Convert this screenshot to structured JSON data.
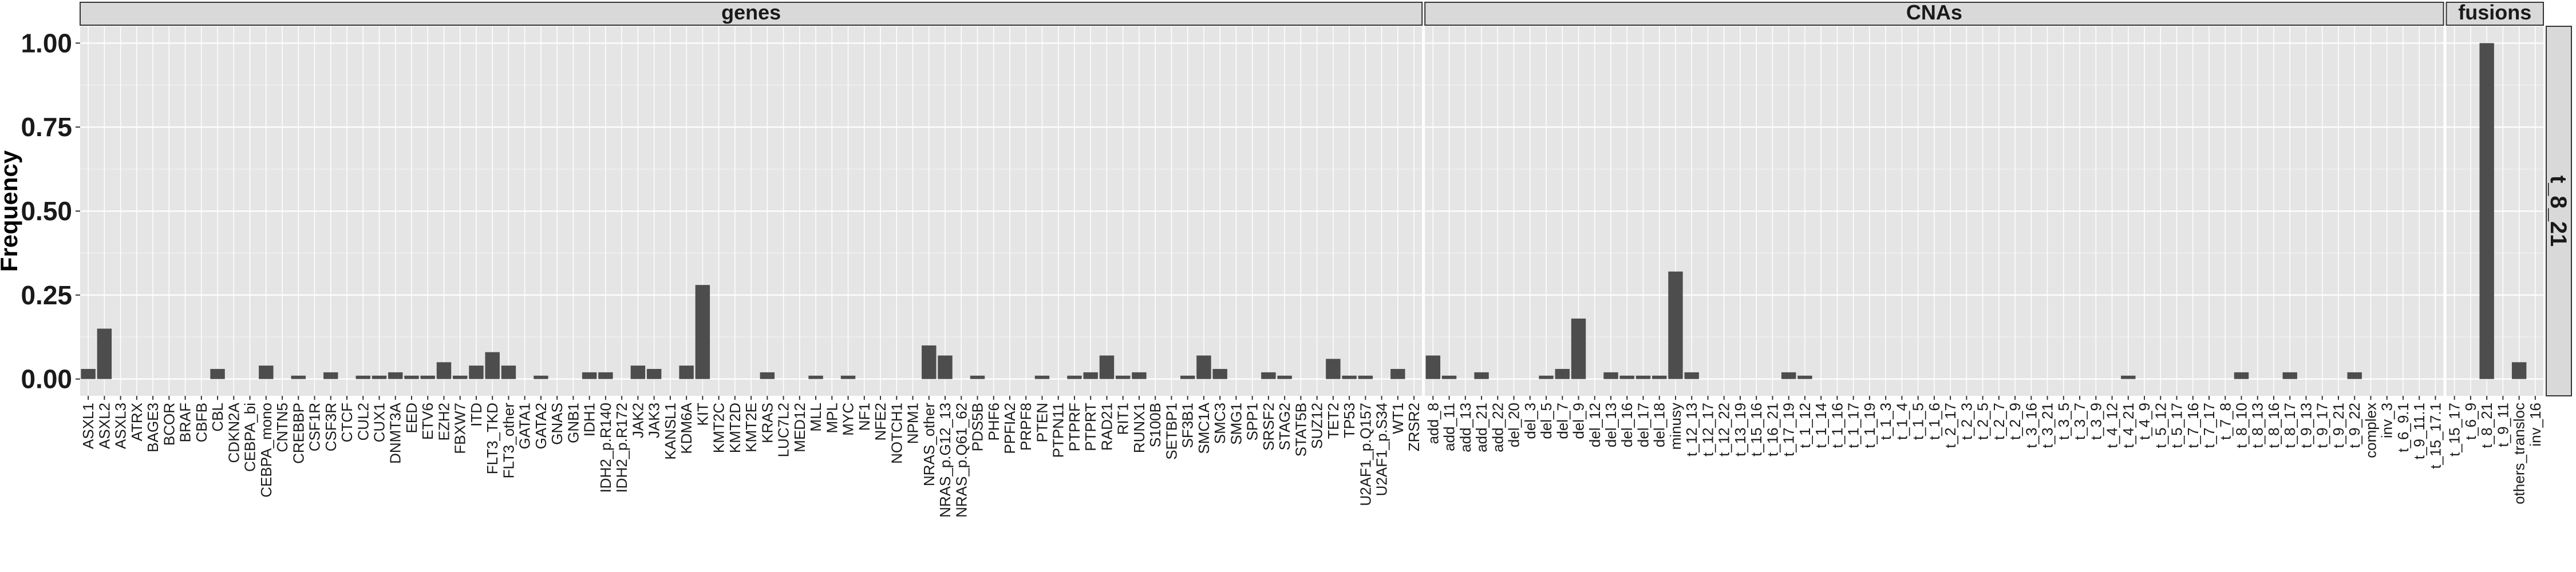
{
  "chart_data": {
    "type": "bar",
    "ylabel": "Frequency",
    "xlabel": "",
    "ylim": [
      0,
      1.0
    ],
    "y_ticks": [
      "0.00",
      "0.25",
      "0.50",
      "0.75",
      "1.00"
    ],
    "row_strip": "t_8_21",
    "bar_color": "#4d4d4d",
    "panel_background": "#e5e5e5",
    "strip_background": "#d9d9d9",
    "grid": true,
    "panels": [
      {
        "title": "genes",
        "categories": [
          "ASXL1",
          "ASXL2",
          "ASXL3",
          "ATRX",
          "BAGE3",
          "BCOR",
          "BRAF",
          "CBFB",
          "CBL",
          "CDKN2A",
          "CEBPA_bi",
          "CEBPA_mono",
          "CNTN5",
          "CREBBP",
          "CSF1R",
          "CSF3R",
          "CTCF",
          "CUL2",
          "CUX1",
          "DNMT3A",
          "EED",
          "ETV6",
          "EZH2",
          "FBXW7",
          "ITD",
          "FLT3_TKD",
          "FLT3_other",
          "GATA1",
          "GATA2",
          "GNAS",
          "GNB1",
          "IDH1",
          "IDH2_p.R140",
          "IDH2_p.R172",
          "JAK2",
          "JAK3",
          "KANSL1",
          "KDM6A",
          "KIT",
          "KMT2C",
          "KMT2D",
          "KMT2E",
          "KRAS",
          "LUC7L2",
          "MED12",
          "MLL",
          "MPL",
          "MYC",
          "NF1",
          "NFE2",
          "NOTCH1",
          "NPM1",
          "NRAS_other",
          "NRAS_p.G12_13",
          "NRAS_p.Q61_62",
          "PDS5B",
          "PHF6",
          "PPFIA2",
          "PRPF8",
          "PTEN",
          "PTPN11",
          "PTPRF",
          "PTPRT",
          "RAD21",
          "RIT1",
          "RUNX1",
          "S100B",
          "SETBP1",
          "SF3B1",
          "SMC1A",
          "SMC3",
          "SMG1",
          "SPP1",
          "SRSF2",
          "STAG2",
          "STAT5B",
          "SUZ12",
          "TET2",
          "TP53",
          "U2AF1_p.Q157",
          "U2AF1_p.S34",
          "WT1",
          "ZRSR2"
        ],
        "values": [
          0.03,
          0.15,
          0,
          0,
          0,
          0,
          0,
          0,
          0.03,
          0,
          0,
          0.04,
          0,
          0.01,
          0,
          0.02,
          0,
          0.01,
          0.01,
          0.02,
          0.01,
          0.01,
          0.05,
          0.01,
          0.04,
          0.08,
          0.04,
          0,
          0.01,
          0,
          0,
          0.02,
          0.02,
          0,
          0.04,
          0.03,
          0,
          0.04,
          0.28,
          0,
          0,
          0,
          0.02,
          0,
          0,
          0.01,
          0,
          0.01,
          0,
          0,
          0,
          0,
          0.1,
          0.07,
          0,
          0.01,
          0,
          0,
          0,
          0.01,
          0,
          0.01,
          0.02,
          0.07,
          0.01,
          0.02,
          0,
          0,
          0.01,
          0.07,
          0.03,
          0,
          0,
          0.02,
          0.01,
          0,
          0,
          0.06,
          0.01,
          0.01,
          0,
          0.03,
          0
        ]
      },
      {
        "title": "CNAs",
        "categories": [
          "add_8",
          "add_11",
          "add_13",
          "add_21",
          "add_22",
          "del_20",
          "del_3",
          "del_5",
          "del_7",
          "del_9",
          "del_12",
          "del_13",
          "del_16",
          "del_17",
          "del_18",
          "minusy",
          "t_12_13",
          "t_12_17",
          "t_12_22",
          "t_13_19",
          "t_15_16",
          "t_16_21",
          "t_17_19",
          "t_1_12",
          "t_1_14",
          "t_1_16",
          "t_1_17",
          "t_1_19",
          "t_1_3",
          "t_1_4",
          "t_1_5",
          "t_1_6",
          "t_2_17",
          "t_2_3",
          "t_2_5",
          "t_2_7",
          "t_2_9",
          "t_3_16",
          "t_3_21",
          "t_3_5",
          "t_3_7",
          "t_3_9",
          "t_4_12",
          "t_4_21",
          "t_4_9",
          "t_5_12",
          "t_5_17",
          "t_7_16",
          "t_7_17",
          "t_7_8",
          "t_8_10",
          "t_8_13",
          "t_8_16",
          "t_8_17",
          "t_9_13",
          "t_9_17",
          "t_9_21",
          "t_9_22",
          "complex",
          "inv_3",
          "t_6_9.1",
          "t_9_11.1",
          "t_15_17.1"
        ],
        "values": [
          0.07,
          0.01,
          0,
          0.02,
          0,
          0,
          0,
          0.01,
          0.03,
          0.18,
          0,
          0.02,
          0.01,
          0.01,
          0.01,
          0.32,
          0.02,
          0,
          0,
          0,
          0,
          0,
          0.02,
          0.01,
          0,
          0,
          0,
          0,
          0,
          0,
          0,
          0,
          0,
          0,
          0,
          0,
          0,
          0,
          0,
          0,
          0,
          0,
          0,
          0.01,
          0,
          0,
          0,
          0,
          0,
          0,
          0.02,
          0,
          0,
          0.02,
          0,
          0,
          0,
          0.02,
          0,
          0,
          0,
          0,
          0
        ]
      },
      {
        "title": "fusions",
        "categories": [
          "t_15_17",
          "t_6_9",
          "t_8_21",
          "t_9_11",
          "others_transloc",
          "inv_16"
        ],
        "values": [
          0,
          0,
          1.0,
          0,
          0.05,
          0
        ]
      }
    ]
  }
}
